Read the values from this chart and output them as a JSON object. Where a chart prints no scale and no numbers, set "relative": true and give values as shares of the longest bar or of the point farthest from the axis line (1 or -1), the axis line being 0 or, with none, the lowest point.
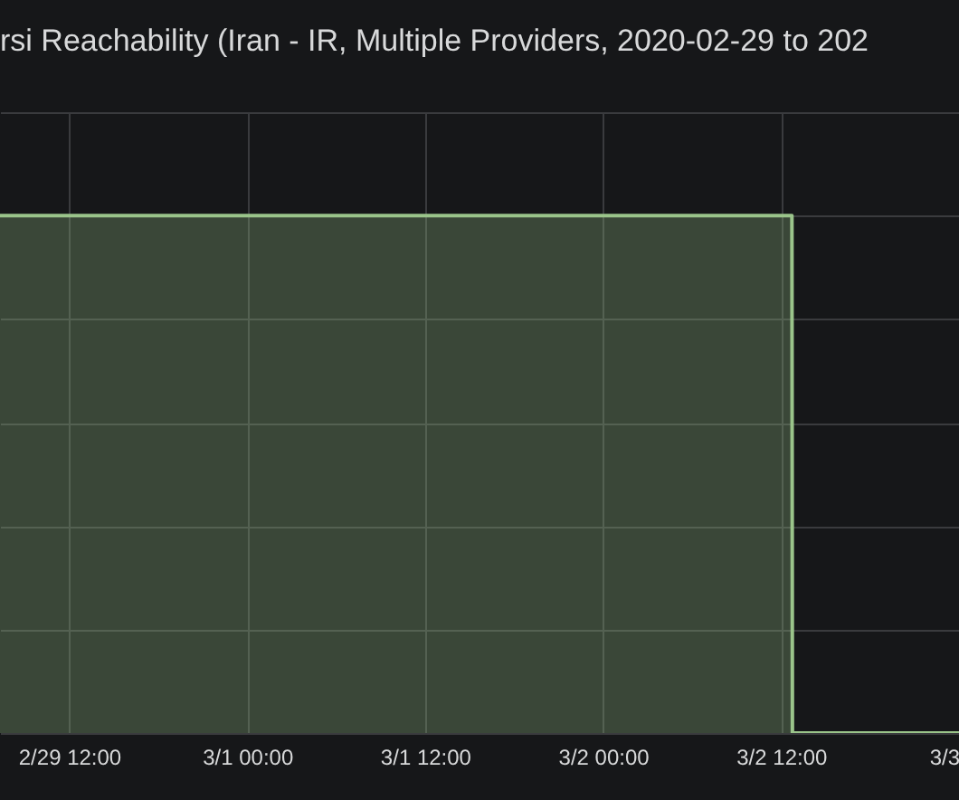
{
  "chart_data": {
    "type": "area",
    "title": "rsi Reachability (Iran - IR, Multiple Providers, 2020-02-29 to 202",
    "relative": true,
    "x": [
      "2020-02-29T07:20",
      "2020-03-02T12:44",
      "2020-03-02T12:46",
      "2020-03-03T00:00"
    ],
    "series": [
      {
        "color": "#9ac48a",
        "values": [
          1,
          1,
          0,
          0
        ]
      }
    ],
    "xlim": [
      "2020-02-29T07:20",
      "2020-03-03T00:00"
    ],
    "xticks": [
      {
        "value": "2020-02-29T12:00",
        "label": "2/29 12:00"
      },
      {
        "value": "2020-03-01T00:00",
        "label": "3/1 00:00"
      },
      {
        "value": "2020-03-01T12:00",
        "label": "3/1 12:00"
      },
      {
        "value": "2020-03-02T00:00",
        "label": "3/2 00:00"
      },
      {
        "value": "2020-03-02T12:00",
        "label": "3/2 12:00"
      },
      {
        "value": "2020-03-03T00:00",
        "label": "3/3"
      }
    ],
    "grid": true
  }
}
